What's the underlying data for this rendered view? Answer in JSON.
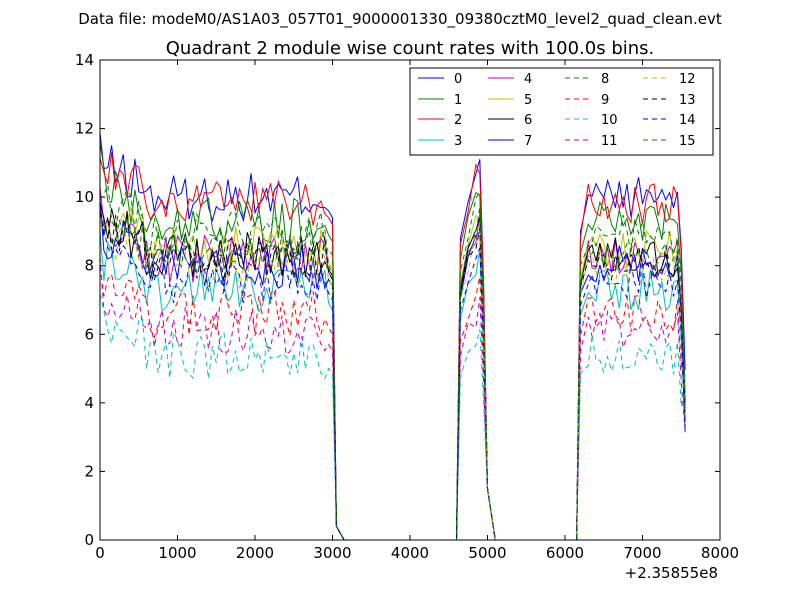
{
  "suptitle": "Data file: modeM0/AS1A03_057T01_9000001330_09380cztM0_level2_quad_clean.evt",
  "chart_data": {
    "type": "line",
    "title": "Quadrant 2 module wise count rates with 100.0s bins.",
    "xlabel": "",
    "ylabel": "",
    "x_offset_label": "+2.35855e8",
    "xlim": [
      0,
      8000
    ],
    "ylim": [
      0,
      14
    ],
    "x_ticks": [
      0,
      1000,
      2000,
      3000,
      4000,
      5000,
      6000,
      7000,
      8000
    ],
    "y_ticks": [
      0,
      2,
      4,
      6,
      8,
      10,
      12,
      14
    ],
    "grid": false,
    "legend_position": "top-right",
    "legend_columns": 4,
    "series": [
      {
        "name": "0",
        "color": "#0000ff",
        "dash": "solid",
        "level": 10.0
      },
      {
        "name": "1",
        "color": "#008000",
        "dash": "solid",
        "level": 9.3
      },
      {
        "name": "2",
        "color": "#ff0000",
        "dash": "solid",
        "level": 9.8
      },
      {
        "name": "3",
        "color": "#00bfbf",
        "dash": "solid",
        "level": 7.3
      },
      {
        "name": "4",
        "color": "#bf00bf",
        "dash": "solid",
        "level": 8.2
      },
      {
        "name": "5",
        "color": "#bfbf00",
        "dash": "solid",
        "level": 8.5
      },
      {
        "name": "6",
        "color": "#000000",
        "dash": "solid",
        "level": 8.3
      },
      {
        "name": "7",
        "color": "#0000ff",
        "dash": "solid",
        "level": 8.0
      },
      {
        "name": "8",
        "color": "#008000",
        "dash": "dashed",
        "level": 8.9
      },
      {
        "name": "9",
        "color": "#ff0000",
        "dash": "dashed",
        "level": 6.6
      },
      {
        "name": "10",
        "color": "#00bfbf",
        "dash": "dashed",
        "level": 5.4
      },
      {
        "name": "11",
        "color": "#bf00bf",
        "dash": "dashed",
        "level": 6.1
      },
      {
        "name": "12",
        "color": "#bfbf00",
        "dash": "dashed",
        "level": 8.0
      },
      {
        "name": "13",
        "color": "#000000",
        "dash": "dashed",
        "level": 8.2
      },
      {
        "name": "14",
        "color": "#0000ff",
        "dash": "dashed",
        "level": 7.6
      },
      {
        "name": "15",
        "color": "#008000",
        "dash": "dashed",
        "level": 8.4
      }
    ],
    "segments": [
      {
        "x_start": 0,
        "x_end": 2950,
        "step": 50
      },
      {
        "x_start": 4650,
        "x_end": 5050,
        "step": 50
      },
      {
        "x_start": 6150,
        "x_end": 7550,
        "step": 50
      }
    ]
  }
}
